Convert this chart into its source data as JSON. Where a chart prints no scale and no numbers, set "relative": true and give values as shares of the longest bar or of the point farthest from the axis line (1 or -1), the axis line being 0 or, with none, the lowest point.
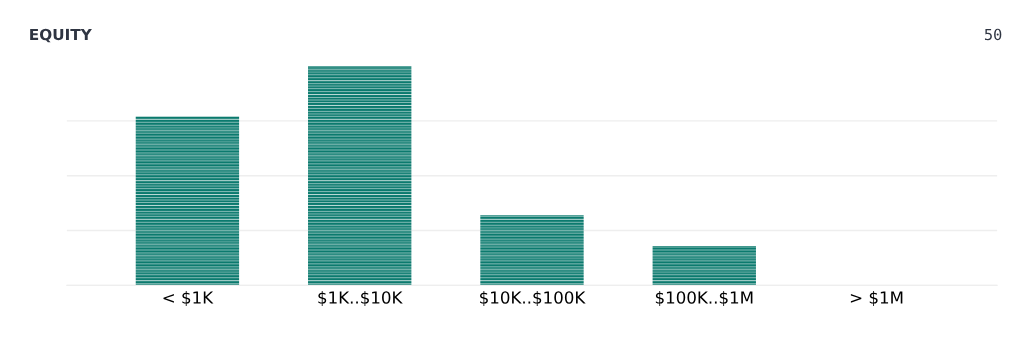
{
  "chart_data": {
    "type": "bar",
    "title": "EQUITY",
    "annotations": [
      "50"
    ],
    "categories": [
      "< $1K",
      "$1K..$10K",
      "$10K..$100K",
      "$100K..$1M",
      "> $1M"
    ],
    "values": [
      0.77,
      1,
      0.32,
      0.18,
      0
    ],
    "color": "#0b7a6e",
    "relative": true,
    "grid": "y",
    "tick_labels": "x"
  }
}
